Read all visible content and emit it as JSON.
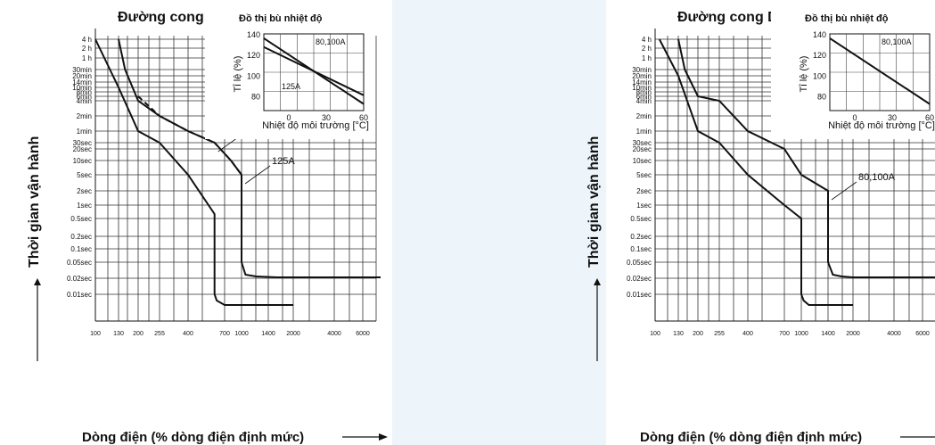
{
  "ylabel": "Thời gian vận hành",
  "xlabel": "Dòng điện (% dòng điện định mức)",
  "y_ticks": [
    "4 h",
    "2 h",
    "1 h",
    "30min",
    "20min",
    "14min",
    "10min",
    "8min",
    "6min",
    "4min",
    "2min",
    "1min",
    "30sec",
    "20sec",
    "10sec",
    "5sec",
    "2sec",
    "1sec",
    "0.5sec",
    "0.2sec",
    "0.1sec",
    "0.05sec",
    "0.02sec",
    "0.01sec"
  ],
  "inset": {
    "title": "Đồ thị bù nhiệt độ",
    "ylabel": "Tỉ lệ (%)",
    "xlabel": "Nhiệt độ môi trường [°C]",
    "y_ticks": [
      "140",
      "120",
      "100",
      "80"
    ],
    "x_ticks": [
      "0",
      "30",
      "60"
    ]
  },
  "chart_data": [
    {
      "type": "line",
      "title": "Đường cong C",
      "x_ticks": [
        "100",
        "130",
        "200",
        "255",
        "400",
        "700",
        "1000",
        "1400",
        "2000",
        "4000",
        "6000"
      ],
      "series": [
        {
          "name": "125A",
          "style": "solid",
          "x": [
            130,
            150,
            200,
            255,
            400,
            600,
            800,
            1000,
            1000,
            1050,
            1200,
            1600,
            2000,
            4000,
            8000
          ],
          "y": [
            "4 h",
            "30min",
            "4min",
            "2min",
            "1min",
            "30sec",
            "10sec",
            "5sec",
            "0.05sec",
            "0.025sec",
            "0.022sec",
            "0.021sec",
            "0.021sec",
            "0.021sec",
            "0.021sec"
          ]
        },
        {
          "name": "80,100A",
          "style": "dashed",
          "x": [
            200,
            255,
            400,
            600,
            800,
            1000
          ],
          "y": [
            "6min",
            "2min",
            "1min",
            "30sec",
            "10sec",
            "5sec"
          ]
        },
        {
          "name": "",
          "style": "solid",
          "x": [
            100,
            105,
            130,
            200,
            255,
            400,
            600,
            600,
            620,
            700,
            1000,
            2000
          ],
          "y": [
            "4 h",
            "2 h",
            "10min",
            "1min",
            "30sec",
            "5sec",
            "0.7sec",
            "0.01sec",
            "0.007sec",
            "0.006sec",
            "0.006sec",
            "0.006sec"
          ]
        }
      ],
      "inset_series": [
        {
          "name": "80,100A",
          "x": [
            -20,
            60
          ],
          "y": [
            136,
            76
          ]
        },
        {
          "name": "125A",
          "x": [
            -20,
            60
          ],
          "y": [
            128,
            84
          ]
        }
      ]
    },
    {
      "type": "line",
      "title": "Đường cong D",
      "x_ticks": [
        "100",
        "130",
        "200",
        "255",
        "400",
        "700",
        "1000",
        "1400",
        "2000",
        "4000",
        "6000"
      ],
      "series": [
        {
          "name": "80,100A",
          "style": "solid",
          "x": [
            130,
            150,
            200,
            255,
            400,
            700,
            1000,
            1400,
            1400,
            1500,
            1700,
            2000,
            4000,
            8000
          ],
          "y": [
            "4 h",
            "30min",
            "6min",
            "4min",
            "1min",
            "20sec",
            "5sec",
            "2sec",
            "0.05sec",
            "0.025sec",
            "0.022sec",
            "0.021sec",
            "0.021sec",
            "0.021sec"
          ]
        },
        {
          "name": "",
          "style": "solid",
          "x": [
            105,
            130,
            200,
            255,
            400,
            700,
            1000,
            1000,
            1030,
            1100,
            1400,
            2000
          ],
          "y": [
            "4 h",
            "20min",
            "1min",
            "30sec",
            "5sec",
            "1sec",
            "0.5sec",
            "0.01sec",
            "0.007sec",
            "0.006sec",
            "0.006sec",
            "0.006sec"
          ]
        }
      ],
      "inset_series": [
        {
          "name": "80,100A",
          "x": [
            -20,
            60
          ],
          "y": [
            136,
            76
          ]
        }
      ]
    }
  ]
}
